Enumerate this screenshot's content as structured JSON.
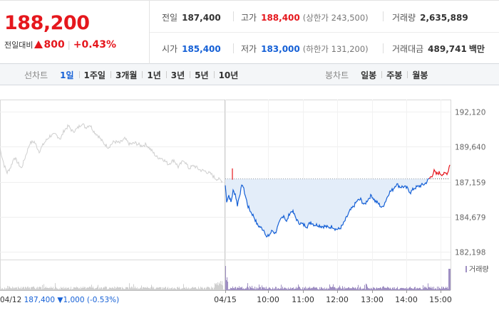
{
  "quote": {
    "current_price": "188,200",
    "change_label": "전일대비",
    "change_amount": "800",
    "change_percent": "+0.43%",
    "separator": "|",
    "stats": {
      "prev_close_label": "전일",
      "prev_close": "187,400",
      "high_label": "고가",
      "high": "188,400",
      "upper_limit": "(상한가 243,500)",
      "volume_label": "거래량",
      "volume": "2,635,889",
      "open_label": "시가",
      "open": "185,400",
      "low_label": "저가",
      "low": "183,000",
      "lower_limit": "(하한가 131,200)",
      "turnover_label": "거래대금",
      "turnover": "489,741",
      "turnover_unit": "백만"
    }
  },
  "tabs": {
    "line_chart_label": "선차트",
    "line_items": [
      "1일",
      "1주일",
      "3개월",
      "1년",
      "3년",
      "5년",
      "10년"
    ],
    "active_line_item": "1일",
    "candle_chart_label": "봉차트",
    "candle_items": [
      "일봉",
      "주봉",
      "월봉"
    ]
  },
  "colors": {
    "up": "#e5171d",
    "down": "#1560d6",
    "fill": "#e3edf9",
    "ghost": "#cfcfcf",
    "volume": "#9f8fc3"
  },
  "chart_data": {
    "type": "line",
    "y_ticks": [
      "192,120",
      "189,640",
      "187,159",
      "184,679",
      "182,198"
    ],
    "ylim": [
      182198,
      192120
    ],
    "prev_close_ref": 187400,
    "x_ticks": [
      "04/15",
      "10:00",
      "11:00",
      "12:00",
      "13:00",
      "14:00",
      "15:00"
    ],
    "volume_legend": "거래량",
    "prev_day": {
      "date": "04/12",
      "close": "187,400",
      "change": "1,000",
      "change_pct": "(-0.53%)",
      "anchors": [
        [
          0,
          189500
        ],
        [
          6,
          188300
        ],
        [
          10,
          187800
        ],
        [
          15,
          188200
        ],
        [
          20,
          188900
        ],
        [
          25,
          188500
        ],
        [
          30,
          188100
        ],
        [
          36,
          189000
        ],
        [
          42,
          189900
        ],
        [
          48,
          190000
        ],
        [
          55,
          189300
        ],
        [
          62,
          189900
        ],
        [
          70,
          190400
        ],
        [
          78,
          190500
        ],
        [
          85,
          190200
        ],
        [
          90,
          190800
        ],
        [
          96,
          191100
        ],
        [
          102,
          190700
        ],
        [
          108,
          190900
        ],
        [
          115,
          191300
        ],
        [
          120,
          191000
        ],
        [
          126,
          191200
        ],
        [
          132,
          190700
        ],
        [
          138,
          190400
        ],
        [
          145,
          189900
        ],
        [
          152,
          189600
        ],
        [
          160,
          190000
        ],
        [
          168,
          189900
        ],
        [
          175,
          190200
        ],
        [
          182,
          189800
        ],
        [
          190,
          189900
        ],
        [
          198,
          189700
        ],
        [
          205,
          189800
        ],
        [
          212,
          189400
        ],
        [
          220,
          188900
        ],
        [
          228,
          188800
        ],
        [
          236,
          188400
        ],
        [
          244,
          188700
        ],
        [
          250,
          188200
        ],
        [
          258,
          188700
        ],
        [
          265,
          188100
        ],
        [
          272,
          188300
        ],
        [
          280,
          188000
        ],
        [
          288,
          187900
        ],
        [
          296,
          187700
        ],
        [
          302,
          187400
        ],
        [
          308,
          187300
        ],
        [
          312,
          187200
        ]
      ]
    },
    "today": {
      "anchors": [
        [
          0,
          186900
        ],
        [
          2,
          185800
        ],
        [
          5,
          186200
        ],
        [
          8,
          185700
        ],
        [
          11,
          186500
        ],
        [
          14,
          186300
        ],
        [
          17,
          185500
        ],
        [
          20,
          186200
        ],
        [
          24,
          187000
        ],
        [
          28,
          186200
        ],
        [
          32,
          185400
        ],
        [
          36,
          185000
        ],
        [
          40,
          184700
        ],
        [
          45,
          184100
        ],
        [
          50,
          183900
        ],
        [
          55,
          183700
        ],
        [
          58,
          183200
        ],
        [
          62,
          183400
        ],
        [
          66,
          183700
        ],
        [
          70,
          183500
        ],
        [
          74,
          184000
        ],
        [
          78,
          184500
        ],
        [
          82,
          184800
        ],
        [
          86,
          184300
        ],
        [
          90,
          184900
        ],
        [
          94,
          185100
        ],
        [
          98,
          184700
        ],
        [
          102,
          184300
        ],
        [
          106,
          184200
        ],
        [
          110,
          184100
        ],
        [
          115,
          184000
        ],
        [
          120,
          184300
        ],
        [
          125,
          184100
        ],
        [
          130,
          184100
        ],
        [
          135,
          184000
        ],
        [
          140,
          184000
        ],
        [
          145,
          183900
        ],
        [
          150,
          184000
        ],
        [
          155,
          183800
        ],
        [
          160,
          183800
        ],
        [
          165,
          184100
        ],
        [
          170,
          184600
        ],
        [
          175,
          185100
        ],
        [
          180,
          185400
        ],
        [
          185,
          185800
        ],
        [
          190,
          185900
        ],
        [
          195,
          185500
        ],
        [
          200,
          185900
        ],
        [
          205,
          186200
        ],
        [
          210,
          185800
        ],
        [
          215,
          185600
        ],
        [
          220,
          185300
        ],
        [
          225,
          185800
        ],
        [
          230,
          186400
        ],
        [
          235,
          186600
        ],
        [
          240,
          187000
        ],
        [
          245,
          186800
        ],
        [
          250,
          186800
        ],
        [
          255,
          186700
        ],
        [
          260,
          186400
        ],
        [
          265,
          186700
        ],
        [
          270,
          186800
        ],
        [
          275,
          186900
        ],
        [
          280,
          187000
        ],
        [
          285,
          187300
        ],
        [
          290,
          187600
        ],
        [
          293,
          187900
        ],
        [
          296,
          187700
        ],
        [
          300,
          187800
        ],
        [
          303,
          187700
        ],
        [
          307,
          187700
        ],
        [
          312,
          187800
        ],
        [
          315,
          188400
        ]
      ]
    }
  }
}
